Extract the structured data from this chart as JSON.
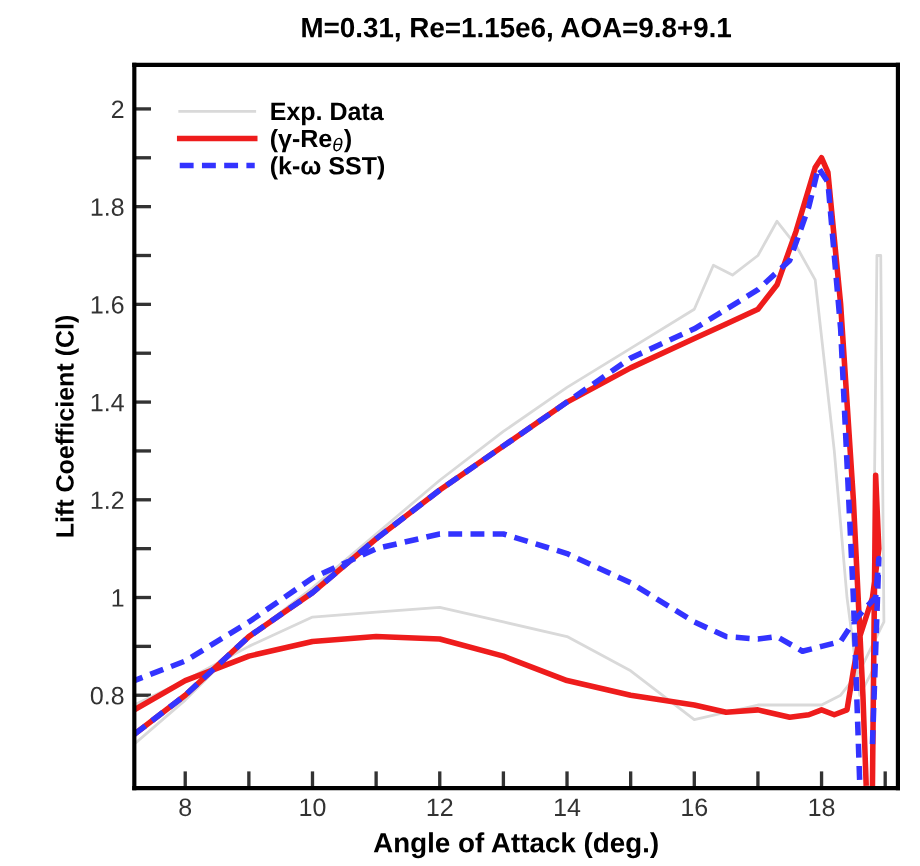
{
  "chart_data": {
    "type": "line",
    "title": "M=0.31, Re=1.15e6, AOA=9.8+9.1",
    "xlabel": "Angle of Attack (deg.)",
    "ylabel": "Lift Coefficient (Cl)",
    "xlim": [
      7.2,
      19.2
    ],
    "ylim": [
      0.61,
      2.09
    ],
    "xticks": [
      8,
      {
        "value": 9,
        "label": null
      },
      10,
      {
        "value": 11,
        "label": null
      },
      12,
      {
        "value": 13,
        "label": null
      },
      14,
      {
        "value": 15,
        "label": null
      },
      16,
      {
        "value": 17,
        "label": null
      },
      18,
      {
        "value": 19,
        "label": null
      }
    ],
    "yticks": [
      0.8,
      {
        "value": 0.9,
        "label": null
      },
      1,
      {
        "value": 1.1,
        "label": null
      },
      1.2,
      {
        "value": 1.3,
        "label": null
      },
      1.4,
      {
        "value": 1.5,
        "label": null
      },
      1.6,
      {
        "value": 1.7,
        "label": null
      },
      1.8,
      {
        "value": 1.9,
        "label": null
      },
      2
    ],
    "grid": false,
    "legend": "top left",
    "marker": "none",
    "series": [
      {
        "name": "Exp. Data",
        "color": "#d9d9d9",
        "line_style": "solid",
        "x": [
          7.2,
          8,
          9,
          10,
          11,
          12,
          13,
          14,
          15,
          16,
          16.3,
          16.6,
          17,
          17.3,
          17.6,
          17.9,
          18.2,
          18.4,
          18.6,
          18.8,
          18.87,
          18.93,
          18.98,
          18.6,
          18.3,
          18,
          17,
          16,
          15,
          14,
          13,
          12,
          11,
          10,
          9,
          8,
          7.2
        ],
        "values": [
          0.7,
          0.79,
          0.92,
          1.02,
          1.13,
          1.24,
          1.34,
          1.43,
          1.51,
          1.59,
          1.68,
          1.66,
          1.7,
          1.77,
          1.72,
          1.65,
          1.3,
          1.0,
          0.8,
          0.85,
          1.7,
          1.7,
          0.95,
          0.85,
          0.8,
          0.78,
          0.78,
          0.75,
          0.85,
          0.92,
          0.95,
          0.98,
          0.97,
          0.96,
          0.9,
          0.83,
          0.78
        ]
      },
      {
        "name": "(γ-Re$_{θ}$)",
        "color": "#ee1c1c",
        "line_style": "solid",
        "x": [
          7.2,
          8,
          9,
          10,
          11,
          12,
          13,
          14,
          15,
          16,
          16.5,
          17,
          17.3,
          17.6,
          17.9,
          18,
          18.1,
          18.3,
          18.5,
          18.65,
          18.7,
          18.75,
          18.8,
          18.85,
          18.9,
          18.8,
          18.6,
          18.5,
          18.4,
          18.2,
          18,
          17.8,
          17.5,
          17,
          16.5,
          16,
          15,
          14,
          13,
          12,
          11,
          10,
          9,
          8,
          7.2
        ],
        "values": [
          0.72,
          0.8,
          0.92,
          1.01,
          1.12,
          1.22,
          1.31,
          1.4,
          1.47,
          1.53,
          1.56,
          1.59,
          1.64,
          1.75,
          1.88,
          1.9,
          1.87,
          1.6,
          1.2,
          0.8,
          0.62,
          null,
          0.62,
          1.25,
          1.1,
          1.0,
          0.92,
          0.85,
          0.77,
          0.76,
          0.77,
          0.76,
          0.755,
          0.77,
          0.765,
          0.78,
          0.8,
          0.83,
          0.88,
          0.915,
          0.92,
          0.91,
          0.88,
          0.83,
          0.77
        ]
      },
      {
        "name": "(k-ω SST)",
        "color": "#3333ff",
        "line_style": "dashed",
        "x": [
          7.2,
          8,
          9,
          10,
          11,
          12,
          13,
          14,
          15,
          16,
          16.5,
          17,
          17.5,
          17.8,
          17.95,
          18.1,
          18.3,
          18.5,
          18.6,
          18.7,
          18.8,
          18.9,
          18.85,
          18.7,
          18.5,
          18.3,
          18,
          17.7,
          17.3,
          17,
          16.5,
          16,
          15,
          14,
          13,
          12,
          11,
          10,
          9,
          8,
          7.2
        ],
        "values": [
          0.72,
          0.8,
          0.92,
          1.01,
          1.12,
          1.22,
          1.31,
          1.4,
          1.49,
          1.55,
          1.59,
          1.63,
          1.69,
          1.8,
          1.88,
          1.85,
          1.55,
          1.0,
          0.62,
          null,
          0.7,
          1.08,
          1.0,
          0.98,
          0.95,
          0.91,
          0.9,
          0.89,
          0.92,
          0.915,
          0.92,
          0.95,
          1.03,
          1.09,
          1.13,
          1.13,
          1.1,
          1.04,
          0.95,
          0.87,
          0.83
        ]
      }
    ]
  }
}
